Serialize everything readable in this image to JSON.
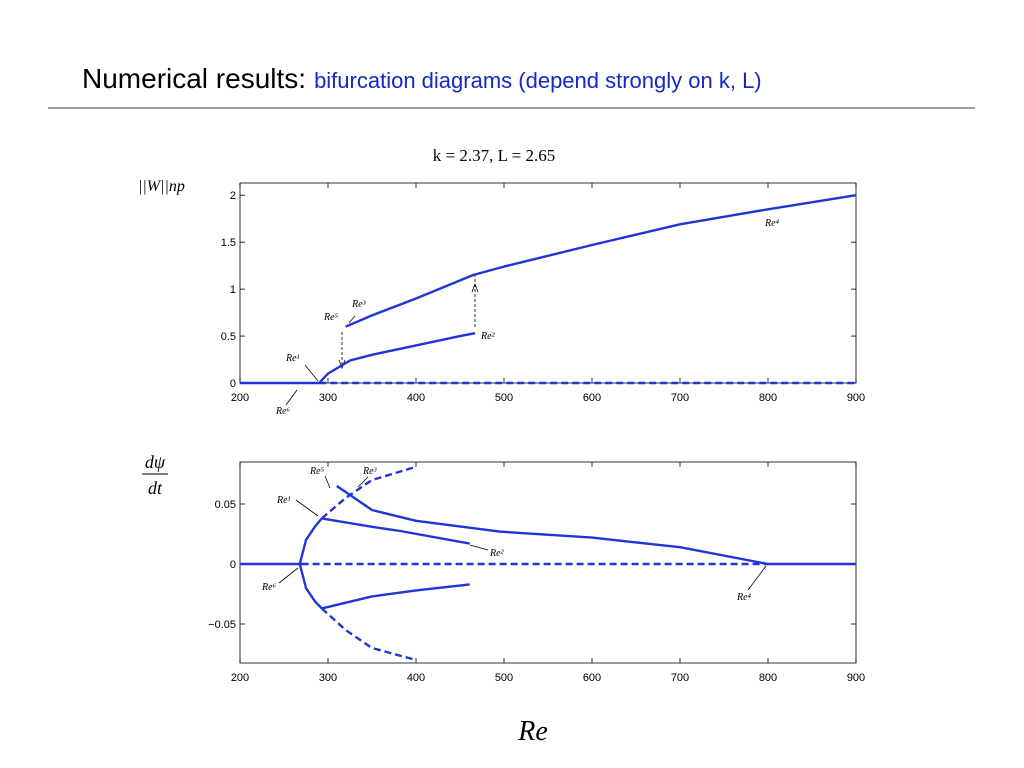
{
  "header": {
    "title": "Numerical results:",
    "title_detail": "bifurcation diagrams (depend strongly on k, L)",
    "subtitle": "k = 2.37, L = 2.65"
  },
  "chart_data": [
    {
      "type": "line",
      "ylabel": "||W||np",
      "xlim": [
        200,
        900
      ],
      "ylim": [
        0,
        2.13
      ],
      "xticks": [
        200,
        300,
        400,
        500,
        600,
        700,
        800,
        900
      ],
      "yticks": [
        0,
        0.5,
        1,
        1.5,
        2
      ],
      "annotations": [
        "Re⁴",
        "Re³",
        "Re⁵",
        "Re¹",
        "Re²",
        "Re⁶"
      ],
      "series": [
        {
          "color": "#1f35d8",
          "style": "solid",
          "x": [
            200,
            290
          ],
          "values": [
            0,
            0
          ]
        },
        {
          "color": "#1f35d8",
          "style": "dashed",
          "x": [
            290,
            900
          ],
          "values": [
            0,
            0
          ]
        },
        {
          "color": "#1f35d8",
          "style": "solid",
          "x": [
            290,
            300,
            325,
            350,
            400,
            450,
            467
          ],
          "values": [
            0,
            0.1,
            0.24,
            0.3,
            0.4,
            0.5,
            0.53
          ]
        },
        {
          "color": "#1f35d8",
          "style": "solid",
          "x": [
            320,
            350,
            400,
            465,
            500,
            600,
            700,
            800,
            900
          ],
          "values": [
            0.6,
            0.72,
            0.9,
            1.15,
            1.24,
            1.47,
            1.69,
            1.85,
            2.0
          ]
        }
      ]
    },
    {
      "type": "line",
      "ylabel": {
        "numerator": "dψ",
        "denominator": "dt"
      },
      "xlabel": "Re",
      "xlim": [
        200,
        900
      ],
      "ylim": [
        -0.0825,
        0.085
      ],
      "xticks": [
        200,
        300,
        400,
        500,
        600,
        700,
        800,
        900
      ],
      "yticks": [
        {
          "value": -0.05,
          "label": "−0.05"
        },
        0,
        0.05
      ],
      "annotations": [
        "Re⁵",
        "Re³",
        "Re¹",
        "Re²",
        "Re⁶",
        "Re⁴"
      ],
      "series": [
        {
          "color": "#1f35d8",
          "style": "solid",
          "x": [
            200,
            270
          ],
          "values": [
            0,
            0
          ]
        },
        {
          "color": "#1f35d8",
          "style": "dashed",
          "x": [
            270,
            800
          ],
          "values": [
            0,
            0
          ]
        },
        {
          "color": "#1f35d8",
          "style": "solid",
          "x": [
            800,
            900
          ],
          "values": [
            0,
            0
          ]
        },
        {
          "color": "#1f35d8",
          "style": "solid",
          "x": [
            268,
            275,
            285,
            293
          ],
          "values": [
            0,
            0.02,
            0.031,
            0.038
          ]
        },
        {
          "color": "#1f35d8",
          "style": "solid",
          "x": [
            268,
            275,
            285,
            293
          ],
          "values": [
            0,
            -0.02,
            -0.031,
            -0.037
          ]
        },
        {
          "color": "#1f35d8",
          "style": "dashed",
          "x": [
            293,
            320,
            350,
            400
          ],
          "values": [
            0.038,
            0.055,
            0.07,
            0.081
          ]
        },
        {
          "color": "#1f35d8",
          "style": "dashed",
          "x": [
            293,
            320,
            350,
            400
          ],
          "values": [
            -0.037,
            -0.055,
            -0.07,
            -0.08
          ]
        },
        {
          "color": "#1f35d8",
          "style": "solid",
          "x": [
            293,
            350,
            382,
            461
          ],
          "values": [
            0.038,
            0.031,
            0.0275,
            0.017
          ]
        },
        {
          "color": "#1f35d8",
          "style": "solid",
          "x": [
            293,
            350,
            400,
            461
          ],
          "values": [
            -0.037,
            -0.027,
            -0.022,
            -0.017
          ]
        },
        {
          "color": "#1f35d8",
          "style": "solid",
          "x": [
            310,
            320,
            350,
            400,
            495,
            600,
            700,
            800
          ],
          "values": [
            0.065,
            0.06,
            0.045,
            0.036,
            0.027,
            0.022,
            0.014,
            0
          ]
        }
      ]
    }
  ]
}
